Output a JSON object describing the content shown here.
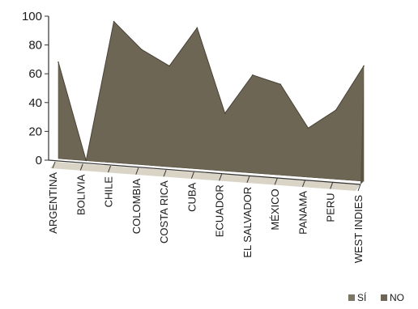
{
  "chart_data": {
    "type": "area",
    "three_d": true,
    "categories": [
      "ARGENTINA",
      "BOLIVIA",
      "CHILE",
      "COLOMBIA",
      "COSTA RICA",
      "CUBA",
      "ECUADOR",
      "EL SALVADOR",
      "MÉXICO",
      "PANAMA",
      "PERU",
      "WEST INDIES"
    ],
    "series": [
      {
        "name": "SÍ",
        "values": [
          0,
          0,
          0,
          0,
          0,
          0,
          0,
          0,
          0,
          0,
          0,
          0
        ],
        "color": "#7d7565"
      },
      {
        "name": "NO",
        "values": [
          67,
          0,
          98,
          80,
          70,
          98,
          40,
          68,
          63,
          34,
          48,
          80
        ],
        "color": "#6e6655"
      }
    ],
    "yticks": [
      "0",
      "20",
      "40",
      "60",
      "80",
      "100"
    ],
    "ylim": [
      0,
      100
    ],
    "legend_position": "bottom-right",
    "grid": false
  }
}
